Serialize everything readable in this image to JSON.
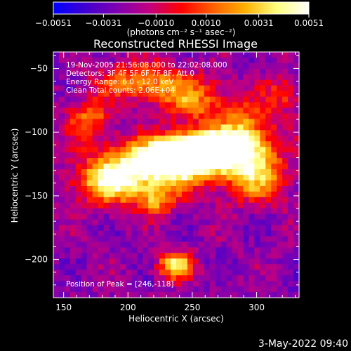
{
  "chart_data": {
    "type": "heatmap",
    "title": "Reconstructed RHESSI Image",
    "xlabel": "Heliocentric X (arcsec)",
    "ylabel": "Heliocentric Y (arcsec)",
    "xlim": [
      142,
      333
    ],
    "ylim": [
      -230,
      -37
    ],
    "x_ticks": [
      150,
      200,
      250,
      300
    ],
    "x_tick_labels": [
      "150",
      "200",
      "250",
      "300"
    ],
    "y_ticks": [
      -50,
      -100,
      -150,
      -200
    ],
    "y_tick_labels": [
      "−50",
      "−100",
      "−150",
      "−200"
    ],
    "colorbar": {
      "range": [
        -0.0051,
        0.0051
      ],
      "ticks": [
        -0.0051,
        -0.0031,
        -0.001,
        0.001,
        0.0031,
        0.0051
      ],
      "tick_labels": [
        "−0.0051",
        "−0.0031",
        "−0.0010",
        "0.0010",
        "0.0031",
        "0.0051"
      ],
      "label": "(photons cm⁻² s⁻¹ asec⁻²)",
      "colors": [
        "#0000ff",
        "#4000d0",
        "#8000b0",
        "#c00080",
        "#ff0000",
        "#ff6000",
        "#ffb000",
        "#ffff80",
        "#ffffff"
      ]
    },
    "annotations": [
      "19-Nov-2005 21:56:08.000 to 22:02:08.000",
      "Detectors: 3F 4F 5F 6F 7F 8F, Att 0",
      "Energy Range: 6.0 - 12.0 keV",
      "Clean    Total counts: 2.06E+04"
    ],
    "peak_label": "Position of Peak = [246,-118]",
    "peak_position": [
      246,
      -118
    ],
    "features": [
      {
        "x": 246,
        "y": -118,
        "sx": 22,
        "sy": 10,
        "amp": 1.0
      },
      {
        "x": 220,
        "y": -128,
        "sx": 30,
        "sy": 14,
        "amp": 0.8
      },
      {
        "x": 265,
        "y": -112,
        "sx": 20,
        "sy": 9,
        "amp": 0.85
      },
      {
        "x": 185,
        "y": -140,
        "sx": 18,
        "sy": 12,
        "amp": 0.65
      },
      {
        "x": 290,
        "y": -105,
        "sx": 16,
        "sy": 18,
        "amp": 0.65
      },
      {
        "x": 300,
        "y": -135,
        "sx": 18,
        "sy": 14,
        "amp": 0.55
      },
      {
        "x": 210,
        "y": -60,
        "sx": 22,
        "sy": 10,
        "amp": 0.55
      },
      {
        "x": 250,
        "y": -75,
        "sx": 18,
        "sy": 12,
        "amp": 0.5
      },
      {
        "x": 170,
        "y": -90,
        "sx": 12,
        "sy": 12,
        "amp": 0.45
      },
      {
        "x": 237,
        "y": -205,
        "sx": 9,
        "sy": 7,
        "amp": 0.8
      },
      {
        "x": 222,
        "y": -155,
        "sx": 10,
        "sy": 8,
        "amp": 0.45
      },
      {
        "x": 320,
        "y": -70,
        "sx": 10,
        "sy": 10,
        "amp": 0.35
      }
    ],
    "background_level": 0.15
  },
  "footer": {
    "timestamp": "3-May-2022 09:40"
  }
}
